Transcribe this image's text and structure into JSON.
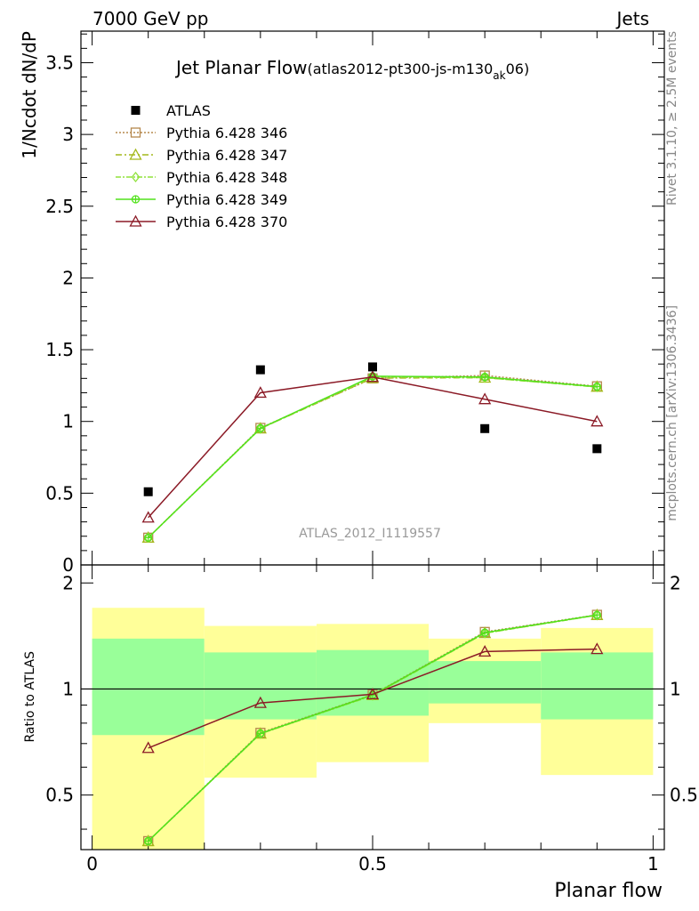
{
  "header": {
    "left": "7000 GeV pp",
    "right": "Jets"
  },
  "side_labels": {
    "rivet": "Rivet 3.1.10, ≥ 2.5M events",
    "mcplots": "mcplots.cern.ch [arXiv:1306.3436]"
  },
  "chart_data": {
    "type": "line",
    "title": "Jet Planar Flow",
    "subtitle_main": "(atlas2012-pt300-js-m130",
    "subtitle_sub": "ak",
    "subtitle_end": "06)",
    "analysis_label": "ATLAS_2012_I1119557",
    "xlabel": "Planar flow",
    "ylabel": "1/Ncdot dN/dP",
    "ratio_ylabel": "Ratio to ATLAS",
    "xlim": [
      -0.02,
      1.02
    ],
    "ylim": [
      0,
      3.72
    ],
    "ratio_ylim": [
      0.35,
      2.25
    ],
    "x_ticks": [
      "0",
      "0.5",
      "1"
    ],
    "y_ticks": [
      "0",
      "0.5",
      "1",
      "1.5",
      "2",
      "2.5",
      "3",
      "3.5"
    ],
    "ratio_ticks": [
      "0.5",
      "1",
      "2"
    ],
    "legend_position": "top-left",
    "bins": [
      [
        0.0,
        0.2
      ],
      [
        0.2,
        0.4
      ],
      [
        0.4,
        0.6
      ],
      [
        0.6,
        0.8
      ],
      [
        0.8,
        1.0
      ]
    ],
    "data": {
      "name": "ATLAS",
      "x": [
        0.1,
        0.3,
        0.5,
        0.7,
        0.9
      ],
      "y": [
        0.51,
        1.36,
        1.38,
        0.95,
        0.81
      ]
    },
    "ratio_bands": {
      "inner": [
        [
          0.74,
          1.39
        ],
        [
          0.82,
          1.27
        ],
        [
          0.84,
          1.29
        ],
        [
          0.91,
          1.2
        ],
        [
          0.82,
          1.27
        ]
      ],
      "outer": [
        [
          0.3,
          1.7
        ],
        [
          0.56,
          1.51
        ],
        [
          0.62,
          1.53
        ],
        [
          0.8,
          1.39
        ],
        [
          0.57,
          1.49
        ]
      ]
    },
    "series": [
      {
        "name": "Pythia 6.428 346",
        "color": "#b5884d",
        "dash": "2,2",
        "marker": "square",
        "y": [
          0.19,
          0.955,
          1.3,
          1.32,
          1.245
        ],
        "ratio": [
          0.37,
          0.751,
          0.964,
          1.452,
          1.624
        ]
      },
      {
        "name": "Pythia 6.428 347",
        "color": "#a4b81a",
        "dash": "7,3,2,3",
        "marker": "triangle",
        "y": [
          0.19,
          0.951,
          1.302,
          1.305,
          1.242
        ],
        "ratio": [
          0.37,
          0.747,
          0.961,
          1.441,
          1.621
        ]
      },
      {
        "name": "Pythia 6.428 348",
        "color": "#90e23c",
        "dash": "6,2,2,2",
        "marker": "diamond",
        "y": [
          0.19,
          0.95,
          1.31,
          1.305,
          1.24
        ],
        "ratio": [
          0.37,
          0.746,
          0.958,
          1.44,
          1.62
        ]
      },
      {
        "name": "Pythia 6.428 349",
        "color": "#52e21c",
        "dash": "",
        "marker": "circle-cross",
        "y": [
          0.19,
          0.952,
          1.315,
          1.31,
          1.242
        ],
        "ratio": [
          0.37,
          0.748,
          0.962,
          1.445,
          1.622
        ]
      },
      {
        "name": "Pythia 6.428 370",
        "color": "#8b1a26",
        "dash": "",
        "marker": "triangle",
        "y": [
          0.33,
          1.2,
          1.31,
          1.155,
          1.0
        ],
        "ratio": [
          0.68,
          0.913,
          0.966,
          1.277,
          1.298
        ]
      }
    ]
  }
}
